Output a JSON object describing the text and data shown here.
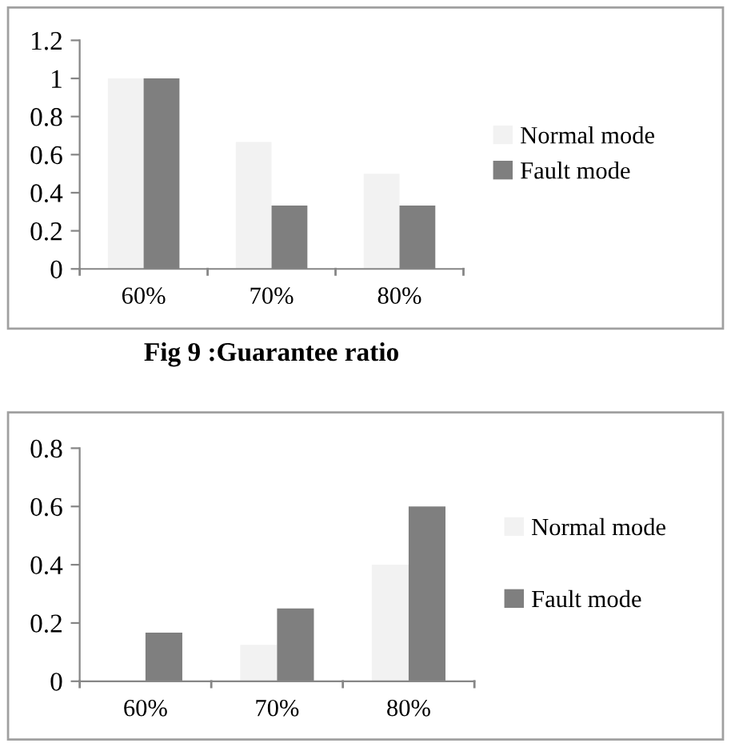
{
  "chart_data": [
    {
      "type": "bar",
      "title": "Fig 9 :Guarantee ratio",
      "categories": [
        "60%",
        "70%",
        "80%"
      ],
      "series": [
        {
          "name": "Normal mode",
          "color": "#f2f2f2",
          "values": [
            1,
            0.667,
            0.5
          ]
        },
        {
          "name": "Fault mode",
          "color": "#7f7f7f",
          "values": [
            1,
            0.333,
            0.333
          ]
        }
      ],
      "ylim": [
        0,
        1.2
      ],
      "yticks": [
        0,
        0.2,
        0.4,
        0.6,
        0.8,
        1,
        1.2
      ],
      "grid": false,
      "legend": "right"
    },
    {
      "type": "bar",
      "categories": [
        "60%",
        "70%",
        "80%"
      ],
      "series": [
        {
          "name": "Normal mode",
          "color": "#f2f2f2",
          "values": [
            0,
            0.125,
            0.4
          ]
        },
        {
          "name": "Fault mode",
          "color": "#7f7f7f",
          "values": [
            0.167,
            0.25,
            0.6
          ]
        }
      ],
      "ylim": [
        0,
        0.8
      ],
      "yticks": [
        0,
        0.2,
        0.4,
        0.6,
        0.8
      ],
      "grid": false,
      "legend": "right"
    }
  ]
}
